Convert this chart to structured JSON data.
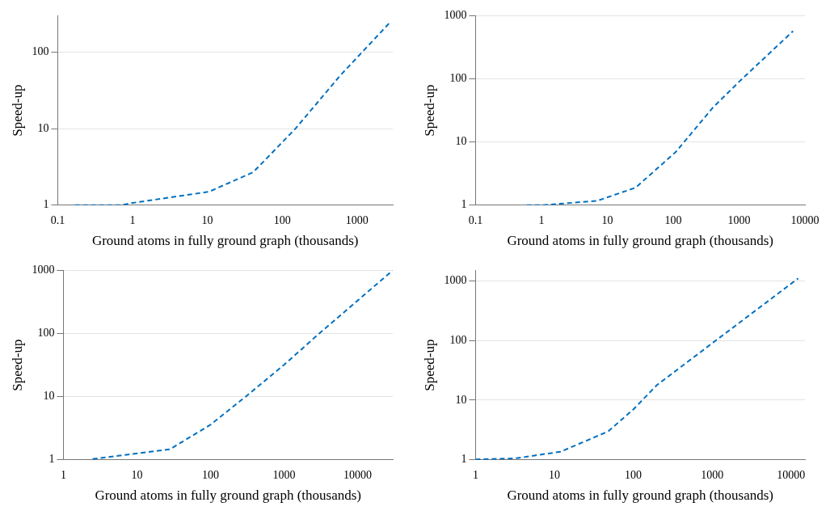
{
  "chart_data": [
    {
      "type": "line",
      "xlabel": "Ground atoms in fully ground graph (thousands)",
      "ylabel": "Speed-up",
      "log": "xy",
      "grid": "y",
      "line_style": "dashed",
      "marker": "none",
      "xlim": [
        0.1,
        3000
      ],
      "ylim": [
        1,
        300
      ],
      "xticks": [
        0.1,
        1,
        10,
        100,
        1000
      ],
      "yticks": [
        1,
        10,
        100
      ],
      "series": [
        {
          "color": "#0070c0",
          "x": [
            0.17,
            0.7,
            1,
            10.5,
            41,
            150,
            590,
            2700
          ],
          "values": [
            1,
            1,
            1.07,
            1.5,
            2.7,
            10,
            49,
            240
          ]
        }
      ]
    },
    {
      "type": "line",
      "xlabel": "Ground atoms in fully ground graph (thousands)",
      "ylabel": "Speed-up",
      "log": "xy",
      "grid": "y",
      "line_style": "dashed",
      "marker": "none",
      "xlim": [
        0.1,
        10000
      ],
      "ylim": [
        1,
        1000
      ],
      "xticks": [
        0.1,
        1,
        10,
        100,
        1000,
        10000
      ],
      "yticks": [
        1,
        10,
        100,
        1000
      ],
      "series": [
        {
          "color": "#0070c0",
          "x": [
            0.6,
            1,
            7,
            27,
            110,
            400,
            1000,
            6600
          ],
          "values": [
            1,
            1,
            1.17,
            1.9,
            7,
            35,
            90,
            570
          ]
        }
      ]
    },
    {
      "type": "line",
      "xlabel": "Ground atoms in fully ground graph (thousands)",
      "ylabel": "Speed-up",
      "log": "xy",
      "grid": "y",
      "line_style": "dashed",
      "marker": "none",
      "xlim": [
        1,
        30000
      ],
      "ylim": [
        1,
        1000
      ],
      "xticks": [
        1,
        10,
        100,
        1000,
        10000
      ],
      "yticks": [
        1,
        10,
        100,
        1000
      ],
      "series": [
        {
          "color": "#0070c0",
          "x": [
            2.5,
            28,
            100,
            300,
            1000,
            3000,
            30000
          ],
          "values": [
            1.03,
            1.47,
            3.6,
            10,
            32,
            100,
            1000
          ]
        }
      ]
    },
    {
      "type": "line",
      "xlabel": "Ground atoms in fully ground graph (thousands)",
      "ylabel": "Speed-up",
      "log": "xy",
      "grid": "y",
      "line_style": "dashed",
      "marker": "none",
      "xlim": [
        1,
        15000
      ],
      "ylim": [
        1,
        1500
      ],
      "xticks": [
        1,
        10,
        100,
        1000,
        10000
      ],
      "yticks": [
        1,
        10,
        100,
        1000
      ],
      "series": [
        {
          "color": "#0070c0",
          "x": [
            1,
            3.2,
            12,
            48,
            100,
            200,
            1000,
            12300
          ],
          "values": [
            1.02,
            1.06,
            1.37,
            3,
            7,
            18,
            90,
            1100
          ]
        }
      ]
    }
  ]
}
